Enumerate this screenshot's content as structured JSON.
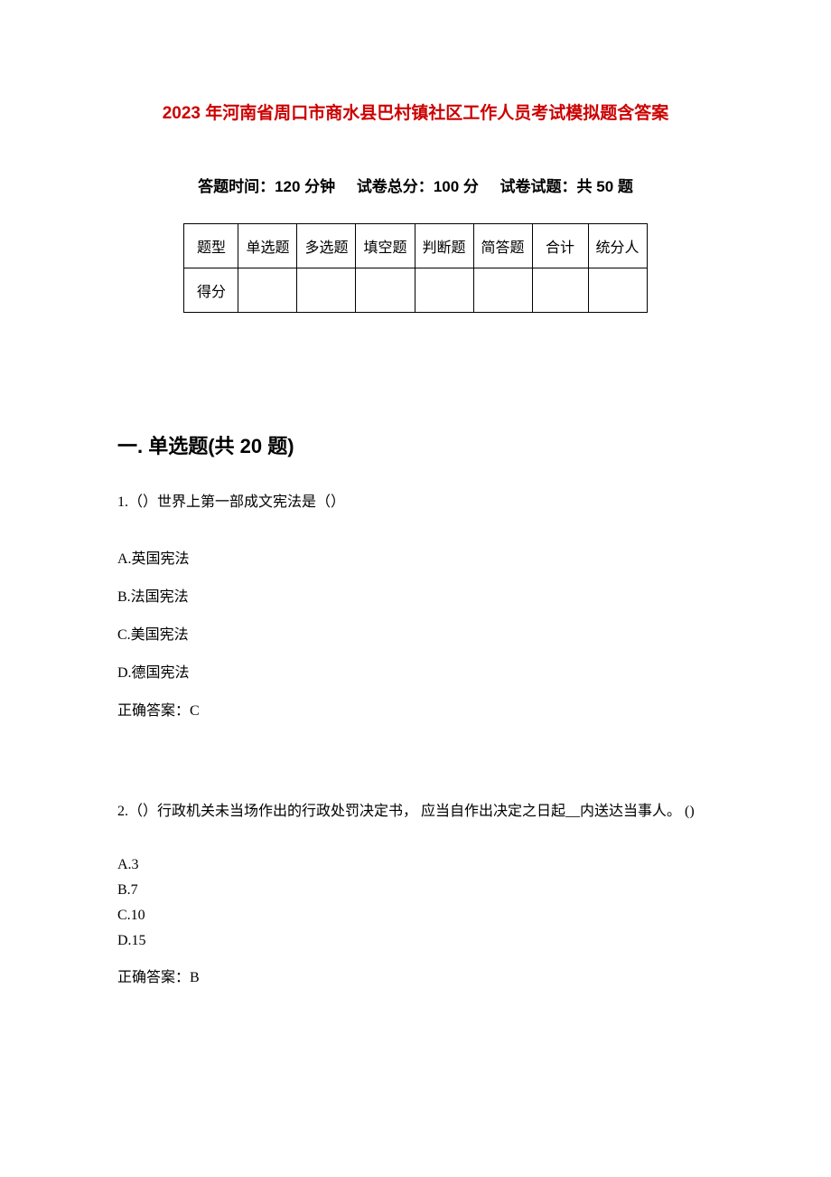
{
  "document": {
    "title": "2023 年河南省周口市商水县巴村镇社区工作人员考试模拟题含答案",
    "title_color": "#cc0000",
    "exam_info": {
      "time_label": "答题时间：",
      "time_value": "120 分钟",
      "score_label": "试卷总分：",
      "score_value": "100 分",
      "count_label": "试卷试题：",
      "count_value": "共 50 题"
    },
    "score_table": {
      "header_row": [
        "题型",
        "单选题",
        "多选题",
        "填空题",
        "判断题",
        "简答题",
        "合计",
        "统分人"
      ],
      "score_row_label": "得分"
    },
    "section": {
      "heading": "一. 单选题(共 20 题)",
      "questions": [
        {
          "number": "1.",
          "text": "（）世界上第一部成文宪法是（）",
          "options": [
            {
              "label": "A.英国宪法"
            },
            {
              "label": "B.法国宪法"
            },
            {
              "label": "C.美国宪法"
            },
            {
              "label": "D.德国宪法"
            }
          ],
          "answer": "正确答案：C"
        },
        {
          "number": "2.",
          "text": "（）行政机关未当场作出的行政处罚决定书，  应当自作出决定之日起__内送达当事人。  ()",
          "options": [
            {
              "label": "A.3"
            },
            {
              "label": "B.7"
            },
            {
              "label": "C.10"
            },
            {
              "label": "D.15"
            }
          ],
          "answer": "正确答案：B"
        }
      ]
    }
  }
}
